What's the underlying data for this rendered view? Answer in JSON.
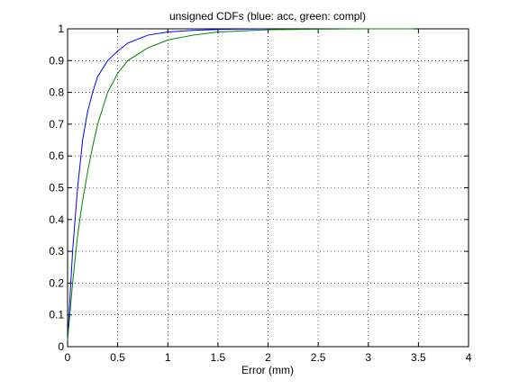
{
  "chart_data": {
    "type": "line",
    "title": "unsigned CDFs (blue: acc, green: compl)",
    "x_label": "Error (mm)",
    "x": [
      0,
      0.05,
      0.1,
      0.15,
      0.2,
      0.25,
      0.3,
      0.4,
      0.5,
      0.6,
      0.8,
      1,
      1.25,
      1.5,
      2,
      2.5,
      3,
      3.45
    ],
    "series": [
      {
        "color": "#0000ff",
        "values": [
          0.02,
          0.3,
          0.5,
          0.65,
          0.74,
          0.8,
          0.85,
          0.9,
          0.93,
          0.955,
          0.98,
          0.99,
          0.995,
          0.998,
          1,
          null,
          null,
          null
        ]
      },
      {
        "color": "#008000",
        "values": [
          0.02,
          0.2,
          0.35,
          0.46,
          0.55,
          0.63,
          0.7,
          0.8,
          0.86,
          0.9,
          0.94,
          0.965,
          0.98,
          0.99,
          0.997,
          0.999,
          1,
          1
        ]
      }
    ],
    "xlim": [
      0,
      4
    ],
    "xticks": [
      0,
      0.5,
      1,
      1.5,
      2,
      2.5,
      3,
      3.5,
      4
    ],
    "ylim": [
      0,
      1
    ],
    "yticks": [
      0,
      0.1,
      0.2,
      0.3,
      0.4,
      0.5,
      0.6,
      0.7,
      0.8,
      0.9,
      1
    ],
    "grid": true
  }
}
